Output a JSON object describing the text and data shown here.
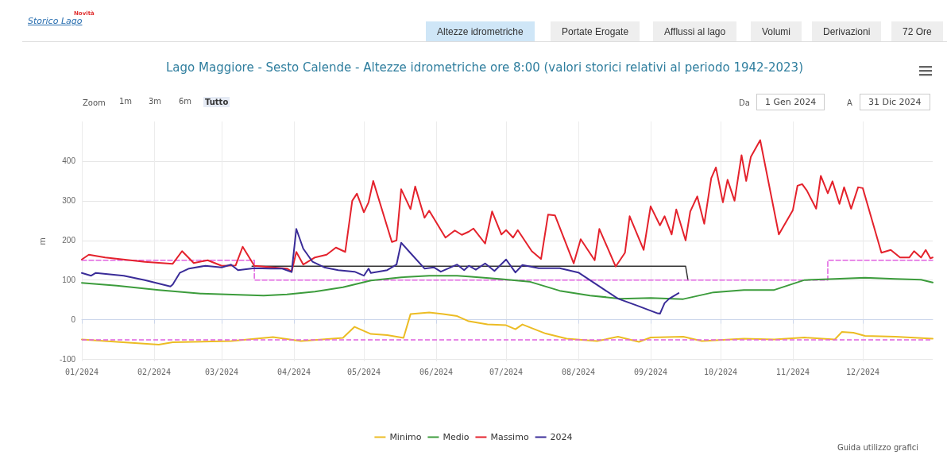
{
  "chart_data": {
    "type": "line",
    "title": "Lago Maggiore - Sesto Calende - Altezze idrometriche ore 8:00 (valori storici relativi al periodo 1942-2023)",
    "ylabel": "m",
    "xlim": [
      "2024-01-01",
      "2024-12-31"
    ],
    "ylim": [
      -105,
      500
    ],
    "xticks": [
      {
        "value": "2024-01-01",
        "label": "01/2024"
      },
      {
        "value": "2024-02-01",
        "label": "02/2024"
      },
      {
        "value": "2024-03-01",
        "label": "03/2024"
      },
      {
        "value": "2024-04-01",
        "label": "04/2024"
      },
      {
        "value": "2024-05-01",
        "label": "05/2024"
      },
      {
        "value": "2024-06-01",
        "label": "06/2024"
      },
      {
        "value": "2024-07-01",
        "label": "07/2024"
      },
      {
        "value": "2024-08-01",
        "label": "08/2024"
      },
      {
        "value": "2024-09-01",
        "label": "09/2024"
      },
      {
        "value": "2024-10-01",
        "label": "10/2024"
      },
      {
        "value": "2024-11-01",
        "label": "11/2024"
      },
      {
        "value": "2024-12-01",
        "label": "12/2024"
      }
    ],
    "yticks": [
      -100,
      0,
      100,
      200,
      300,
      400
    ],
    "grid": true,
    "legend": "bottom",
    "marker": "none",
    "series": [
      {
        "name": "Minimo",
        "color": "#ecbc24",
        "x": [
          "2024-01-01",
          "2024-01-16",
          "2024-02-03",
          "2024-02-09",
          "2024-03-05",
          "2024-03-23",
          "2024-04-04",
          "2024-04-22",
          "2024-04-27",
          "2024-05-04",
          "2024-05-11",
          "2024-05-18",
          "2024-05-21",
          "2024-05-29",
          "2024-06-04",
          "2024-06-10",
          "2024-06-15",
          "2024-06-23",
          "2024-07-01",
          "2024-07-05",
          "2024-07-08",
          "2024-07-18",
          "2024-07-27",
          "2024-08-09",
          "2024-08-18",
          "2024-08-27",
          "2024-09-01",
          "2024-09-15",
          "2024-09-23",
          "2024-10-11",
          "2024-10-24",
          "2024-11-06",
          "2024-11-19",
          "2024-11-22",
          "2024-11-27",
          "2024-12-02",
          "2024-12-15",
          "2024-12-31"
        ],
        "values": [
          -50,
          -56,
          -63,
          -57,
          -54,
          -44,
          -54,
          -46,
          -18,
          -36,
          -39,
          -46,
          14,
          18,
          14,
          9,
          -4,
          -12,
          -14,
          -24,
          -12,
          -35,
          -48,
          -54,
          -43,
          -56,
          -45,
          -43,
          -54,
          -48,
          -50,
          -45,
          -50,
          -31,
          -33,
          -41,
          -43,
          -48
        ]
      },
      {
        "name": "Medio",
        "color": "#3c9c3c",
        "x": [
          "2024-01-01",
          "2024-01-16",
          "2024-02-03",
          "2024-02-21",
          "2024-03-19",
          "2024-03-29",
          "2024-04-10",
          "2024-04-22",
          "2024-05-04",
          "2024-05-17",
          "2024-05-29",
          "2024-06-10",
          "2024-06-15",
          "2024-06-28",
          "2024-07-11",
          "2024-07-24",
          "2024-08-06",
          "2024-08-19",
          "2024-09-01",
          "2024-09-15",
          "2024-09-28",
          "2024-10-11",
          "2024-10-24",
          "2024-11-06",
          "2024-11-19",
          "2024-12-02",
          "2024-12-15",
          "2024-12-26",
          "2024-12-31"
        ],
        "values": [
          93,
          86,
          75,
          66,
          61,
          64,
          71,
          82,
          99,
          107,
          111,
          111,
          109,
          103,
          96,
          73,
          61,
          53,
          55,
          52,
          69,
          75,
          75,
          100,
          103,
          106,
          103,
          101,
          94
        ]
      },
      {
        "name": "Massimo",
        "color": "#e4222c",
        "x": [
          "2024-01-01",
          "2024-01-04",
          "2024-01-11",
          "2024-01-28",
          "2024-02-09",
          "2024-02-13",
          "2024-02-18",
          "2024-02-24",
          "2024-03-01",
          "2024-03-07",
          "2024-03-10",
          "2024-03-15",
          "2024-03-29",
          "2024-03-31",
          "2024-04-02",
          "2024-04-05",
          "2024-04-10",
          "2024-04-15",
          "2024-04-19",
          "2024-04-23",
          "2024-04-26",
          "2024-04-28",
          "2024-05-01",
          "2024-05-03",
          "2024-05-05",
          "2024-05-13",
          "2024-05-15",
          "2024-05-17",
          "2024-05-21",
          "2024-05-23",
          "2024-05-27",
          "2024-05-29",
          "2024-06-05",
          "2024-06-09",
          "2024-06-12",
          "2024-06-15",
          "2024-06-17",
          "2024-06-22",
          "2024-06-25",
          "2024-06-29",
          "2024-07-01",
          "2024-07-04",
          "2024-07-06",
          "2024-07-12",
          "2024-07-16",
          "2024-07-19",
          "2024-07-22",
          "2024-07-30",
          "2024-08-02",
          "2024-08-08",
          "2024-08-10",
          "2024-08-17",
          "2024-08-21",
          "2024-08-23",
          "2024-08-29",
          "2024-09-01",
          "2024-09-05",
          "2024-09-07",
          "2024-09-10",
          "2024-09-12",
          "2024-09-16",
          "2024-09-18",
          "2024-09-21",
          "2024-09-24",
          "2024-09-27",
          "2024-09-29",
          "2024-10-02",
          "2024-10-04",
          "2024-10-07",
          "2024-10-10",
          "2024-10-12",
          "2024-10-14",
          "2024-10-18",
          "2024-10-26",
          "2024-11-01",
          "2024-11-03",
          "2024-11-05",
          "2024-11-07",
          "2024-11-11",
          "2024-11-13",
          "2024-11-16",
          "2024-11-18",
          "2024-11-21",
          "2024-11-23",
          "2024-11-26",
          "2024-11-29",
          "2024-12-01",
          "2024-12-09",
          "2024-12-13",
          "2024-12-17",
          "2024-12-21",
          "2024-12-23",
          "2024-12-26",
          "2024-12-28",
          "2024-12-30",
          "2024-12-31"
        ],
        "values": [
          152,
          164,
          157,
          146,
          141,
          173,
          143,
          150,
          136,
          137,
          184,
          136,
          129,
          121,
          171,
          139,
          157,
          164,
          182,
          171,
          300,
          318,
          271,
          296,
          350,
          196,
          200,
          329,
          279,
          336,
          257,
          275,
          207,
          225,
          214,
          222,
          230,
          192,
          273,
          215,
          226,
          207,
          226,
          173,
          153,
          265,
          263,
          142,
          203,
          150,
          229,
          134,
          169,
          261,
          176,
          286,
          238,
          261,
          215,
          278,
          200,
          273,
          311,
          242,
          357,
          384,
          296,
          353,
          300,
          415,
          350,
          411,
          453,
          215,
          276,
          338,
          342,
          326,
          280,
          363,
          319,
          349,
          292,
          334,
          280,
          334,
          332,
          169,
          176,
          157,
          157,
          173,
          157,
          176,
          155,
          157
        ]
      },
      {
        "name": "2024",
        "color": "#3a2c98",
        "x": [
          "2024-01-01",
          "2024-01-05",
          "2024-01-07",
          "2024-01-19",
          "2024-01-28",
          "2024-02-08",
          "2024-02-09",
          "2024-02-12",
          "2024-02-16",
          "2024-02-23",
          "2024-03-01",
          "2024-03-05",
          "2024-03-08",
          "2024-03-15",
          "2024-03-22",
          "2024-03-27",
          "2024-03-31",
          "2024-04-02",
          "2024-04-05",
          "2024-04-09",
          "2024-04-14",
          "2024-04-20",
          "2024-04-27",
          "2024-05-01",
          "2024-05-03",
          "2024-05-04",
          "2024-05-11",
          "2024-05-15",
          "2024-05-17",
          "2024-05-21",
          "2024-05-27",
          "2024-05-31",
          "2024-06-03",
          "2024-06-10",
          "2024-06-13",
          "2024-06-15",
          "2024-06-18",
          "2024-06-22",
          "2024-06-26",
          "2024-07-01",
          "2024-07-05",
          "2024-07-08",
          "2024-07-15",
          "2024-07-24",
          "2024-08-01",
          "2024-08-10",
          "2024-08-18",
          "2024-08-26",
          "2024-09-04",
          "2024-09-05",
          "2024-09-07",
          "2024-09-09",
          "2024-09-13"
        ],
        "values": [
          118,
          111,
          118,
          111,
          100,
          84,
          89,
          118,
          129,
          136,
          132,
          139,
          125,
          130,
          129,
          129,
          120,
          229,
          179,
          146,
          132,
          125,
          121,
          111,
          129,
          118,
          125,
          139,
          194,
          168,
          129,
          132,
          121,
          139,
          125,
          136,
          126,
          142,
          123,
          152,
          119,
          138,
          130,
          130,
          119,
          84,
          53,
          36,
          16,
          15,
          42,
          53,
          67
        ]
      },
      {
        "color": "#333333",
        "x": [
          "2024-03-14",
          "2024-09-16",
          "2024-09-17"
        ],
        "values": [
          135,
          135,
          100
        ]
      },
      {
        "type": "step",
        "color": "#e060e0",
        "line_style": "dashed",
        "x": [
          "2024-01-01",
          "2024-03-15",
          "2024-11-16",
          "2024-12-31"
        ],
        "values": [
          150,
          100,
          150,
          150
        ]
      }
    ],
    "ref_lines": [
      {
        "axis": "y",
        "value": -50,
        "color": "#e060e0",
        "line_style": "dashed"
      }
    ],
    "annotations": [
      "Storico Lago",
      "Novità",
      "Altezze idrometriche",
      "Portate Erogate",
      "Afflussi al lago",
      "Volumi",
      "Derivazioni",
      "72 Ore",
      "Zoom",
      "1m",
      "3m",
      "6m",
      "Tutto",
      "Da",
      "1 Gen 2024",
      "A",
      "31 Dic 2024",
      "Guida utilizzo grafici"
    ]
  }
}
